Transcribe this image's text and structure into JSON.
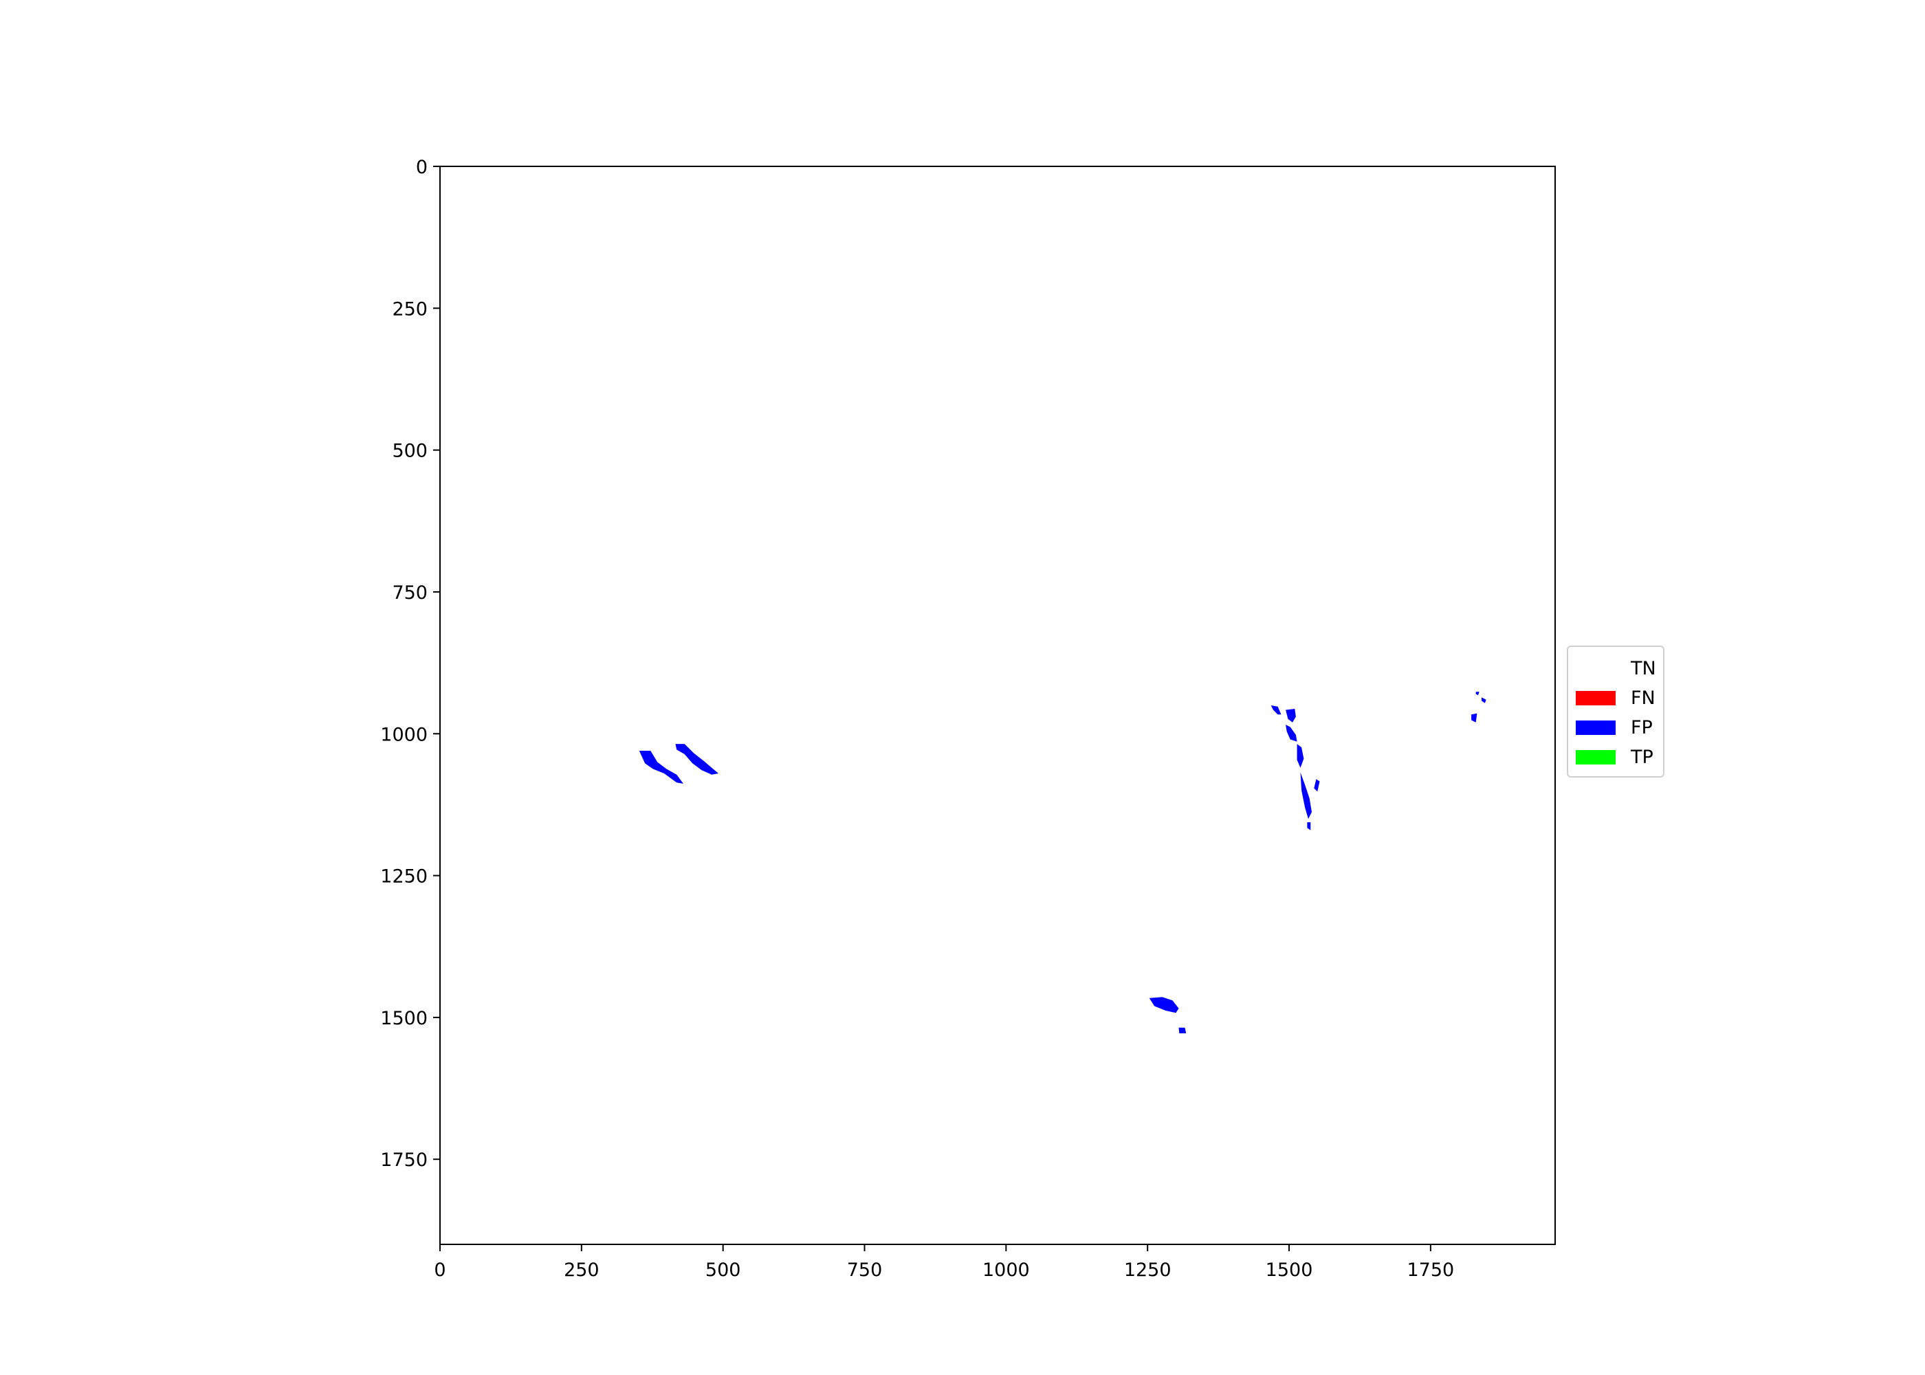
{
  "chart_data": {
    "type": "heatmap",
    "subtype": "segmentation-confusion-mask",
    "title": "",
    "xlabel": "",
    "ylabel": "",
    "xlim": [
      0,
      1970
    ],
    "ylim": [
      1900,
      0
    ],
    "y_axis_inverted": true,
    "grid": false,
    "legend_position": "right",
    "x_ticks": [
      0,
      250,
      500,
      750,
      1000,
      1250,
      1500,
      1750
    ],
    "y_ticks": [
      0,
      250,
      500,
      750,
      1000,
      1250,
      1500,
      1750
    ],
    "x_tick_labels": [
      "0",
      "250",
      "500",
      "750",
      "1000",
      "1250",
      "1500",
      "1750"
    ],
    "y_tick_labels": [
      "0",
      "250",
      "500",
      "750",
      "1000",
      "1250",
      "1500",
      "1750"
    ],
    "classes": [
      {
        "label": "TN",
        "color": "#ffffff"
      },
      {
        "label": "FN",
        "color": "#ff0000"
      },
      {
        "label": "FP",
        "color": "#0000ff"
      },
      {
        "label": "TP",
        "color": "#00ff00"
      }
    ],
    "regions": [
      {
        "class": "FP",
        "polygon": [
          [
            352,
            1030
          ],
          [
            372,
            1030
          ],
          [
            384,
            1050
          ],
          [
            400,
            1062
          ],
          [
            418,
            1072
          ],
          [
            430,
            1088
          ],
          [
            418,
            1086
          ],
          [
            396,
            1070
          ],
          [
            376,
            1062
          ],
          [
            362,
            1052
          ]
        ]
      },
      {
        "class": "FP",
        "polygon": [
          [
            416,
            1018
          ],
          [
            432,
            1018
          ],
          [
            448,
            1034
          ],
          [
            466,
            1048
          ],
          [
            480,
            1060
          ],
          [
            492,
            1070
          ],
          [
            480,
            1072
          ],
          [
            462,
            1064
          ],
          [
            446,
            1052
          ],
          [
            432,
            1036
          ],
          [
            418,
            1028
          ]
        ]
      },
      {
        "class": "FP",
        "polygon": [
          [
            1468,
            950
          ],
          [
            1480,
            952
          ],
          [
            1486,
            966
          ],
          [
            1480,
            966
          ],
          [
            1472,
            958
          ]
        ]
      },
      {
        "class": "FP",
        "polygon": [
          [
            1494,
            958
          ],
          [
            1510,
            956
          ],
          [
            1512,
            970
          ],
          [
            1506,
            980
          ],
          [
            1498,
            974
          ]
        ]
      },
      {
        "class": "FP",
        "polygon": [
          [
            1494,
            984
          ],
          [
            1502,
            988
          ],
          [
            1512,
            1002
          ],
          [
            1514,
            1014
          ],
          [
            1502,
            1010
          ],
          [
            1496,
            996
          ]
        ]
      },
      {
        "class": "FP",
        "polygon": [
          [
            1514,
            1018
          ],
          [
            1522,
            1024
          ],
          [
            1526,
            1044
          ],
          [
            1520,
            1060
          ],
          [
            1514,
            1046
          ]
        ]
      },
      {
        "class": "FP",
        "polygon": [
          [
            1520,
            1068
          ],
          [
            1528,
            1090
          ],
          [
            1536,
            1114
          ],
          [
            1540,
            1138
          ],
          [
            1534,
            1150
          ],
          [
            1528,
            1130
          ],
          [
            1522,
            1100
          ]
        ]
      },
      {
        "class": "FP",
        "polygon": [
          [
            1548,
            1080
          ],
          [
            1554,
            1084
          ],
          [
            1550,
            1102
          ],
          [
            1544,
            1096
          ]
        ]
      },
      {
        "class": "FP",
        "polygon": [
          [
            1532,
            1156
          ],
          [
            1538,
            1156
          ],
          [
            1538,
            1170
          ],
          [
            1532,
            1166
          ]
        ]
      },
      {
        "class": "FP",
        "polygon": [
          [
            1253,
            1466
          ],
          [
            1276,
            1464
          ],
          [
            1294,
            1470
          ],
          [
            1305,
            1484
          ],
          [
            1300,
            1492
          ],
          [
            1282,
            1488
          ],
          [
            1262,
            1480
          ]
        ]
      },
      {
        "class": "FP",
        "polygon": [
          [
            1305,
            1518
          ],
          [
            1316,
            1518
          ],
          [
            1318,
            1528
          ],
          [
            1306,
            1528
          ]
        ]
      },
      {
        "class": "FP",
        "polygon": [
          [
            1822,
            966
          ],
          [
            1832,
            964
          ],
          [
            1830,
            980
          ],
          [
            1822,
            976
          ]
        ]
      },
      {
        "class": "FP",
        "polygon": [
          [
            1830,
            926
          ],
          [
            1836,
            926
          ],
          [
            1834,
            932
          ],
          [
            1830,
            930
          ]
        ]
      },
      {
        "class": "FP",
        "polygon": [
          [
            1840,
            936
          ],
          [
            1848,
            940
          ],
          [
            1846,
            946
          ],
          [
            1840,
            942
          ]
        ]
      }
    ]
  }
}
